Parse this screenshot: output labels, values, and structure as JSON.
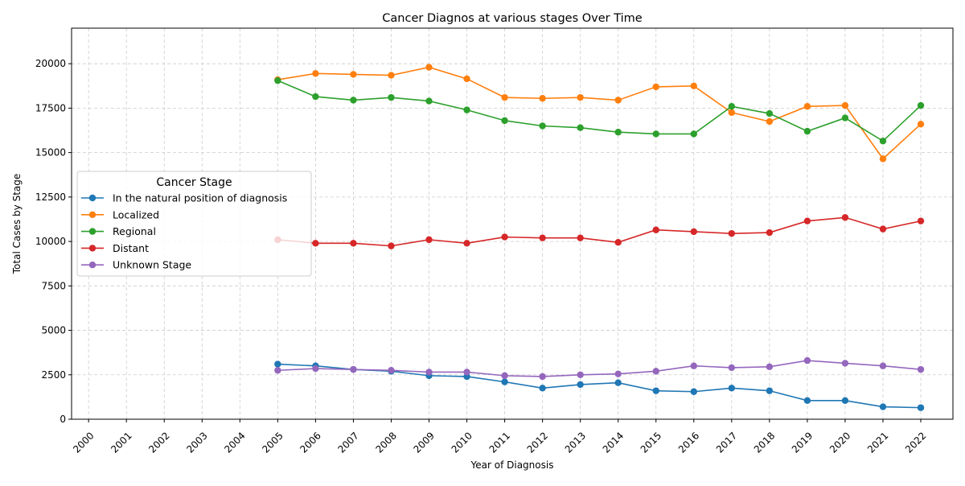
{
  "chart_data": {
    "type": "line",
    "title": "Cancer Diagnos at various stages Over Time",
    "xlabel": "Year of Diagnosis",
    "ylabel": "Total Cases by Stage",
    "x": [
      2000,
      2001,
      2002,
      2003,
      2004,
      2005,
      2006,
      2007,
      2008,
      2009,
      2010,
      2011,
      2012,
      2013,
      2014,
      2015,
      2016,
      2017,
      2018,
      2019,
      2020,
      2021,
      2022
    ],
    "x_tick_labels": [
      "2000",
      "2001",
      "2002",
      "2003",
      "2004",
      "2005",
      "2006",
      "2007",
      "2008",
      "2009",
      "2010",
      "2011",
      "2012",
      "2013",
      "2014",
      "2015",
      "2016",
      "2017",
      "2018",
      "2019",
      "2020",
      "2021",
      "2022"
    ],
    "y_ticks": [
      0,
      2500,
      5000,
      7500,
      10000,
      12500,
      15000,
      17500,
      20000
    ],
    "y_tick_labels": [
      "0",
      "2500",
      "5000",
      "7500",
      "10000",
      "12500",
      "15000",
      "17500",
      "20000"
    ],
    "xlim": [
      1999.55,
      2022.85
    ],
    "ylim": [
      0,
      22000
    ],
    "grid": true,
    "legend": {
      "title": "Cancer Stage",
      "placement": "center-left"
    },
    "series": [
      {
        "name": "In the natural position of diagnosis",
        "color": "#1f77b4",
        "values": [
          null,
          null,
          null,
          null,
          null,
          3100,
          3000,
          2800,
          2700,
          2450,
          2400,
          2100,
          1750,
          1950,
          2050,
          1600,
          1550,
          1750,
          1600,
          1050,
          1050,
          700,
          650
        ]
      },
      {
        "name": "Localized",
        "color": "#ff7f0e",
        "values": [
          null,
          null,
          null,
          null,
          null,
          19100,
          19450,
          19400,
          19350,
          19800,
          19150,
          18100,
          18050,
          18100,
          17950,
          18700,
          18750,
          17250,
          16750,
          17600,
          17650,
          14650,
          16600
        ]
      },
      {
        "name": "Regional",
        "color": "#2ca02c",
        "values": [
          null,
          null,
          null,
          null,
          null,
          19050,
          18150,
          17950,
          18100,
          17900,
          17400,
          16800,
          16500,
          16400,
          16150,
          16050,
          16050,
          17600,
          17200,
          16200,
          16950,
          15650,
          17650
        ]
      },
      {
        "name": "Distant",
        "color": "#d62728",
        "values": [
          null,
          null,
          null,
          null,
          null,
          10100,
          9900,
          9900,
          9750,
          10100,
          9900,
          10250,
          10200,
          10200,
          9950,
          10650,
          10550,
          10450,
          10500,
          11150,
          11350,
          10700,
          11150
        ]
      },
      {
        "name": "Unknown Stage",
        "color": "#9467bd",
        "values": [
          null,
          null,
          null,
          null,
          null,
          2750,
          2850,
          2800,
          2750,
          2650,
          2650,
          2450,
          2400,
          2500,
          2550,
          2700,
          3000,
          2900,
          2950,
          3300,
          3150,
          3000,
          2800
        ]
      }
    ]
  }
}
